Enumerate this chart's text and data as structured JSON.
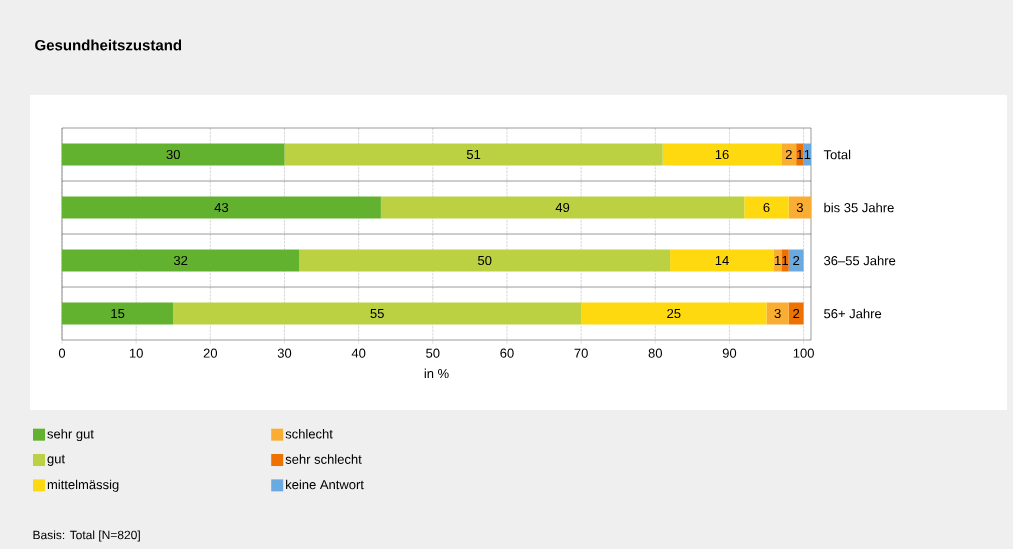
{
  "chart_data": {
    "type": "bar",
    "orientation": "horizontal",
    "stacked": true,
    "title": "Gesundheitszustand",
    "xlabel": "in %",
    "categories": [
      "Total",
      "bis 35 Jahre",
      "36–55 Jahre",
      "56+ Jahre"
    ],
    "series": [
      {
        "name": "sehr gut",
        "color": "#63b22f",
        "values": [
          30,
          43,
          32,
          15
        ],
        "value_labels": [
          "30",
          "43",
          "32",
          "15"
        ]
      },
      {
        "name": "gut",
        "color": "#bcd142",
        "values": [
          51,
          49,
          50,
          55
        ],
        "value_labels": [
          "51",
          "49",
          "50",
          "55"
        ]
      },
      {
        "name": "mittelmässig",
        "color": "#ffd90f",
        "values": [
          16,
          6,
          14,
          25
        ],
        "value_labels": [
          "16",
          "6",
          "14",
          "25"
        ]
      },
      {
        "name": "schlecht",
        "color": "#f9ae33",
        "values": [
          2,
          3,
          1,
          3
        ],
        "value_labels": [
          "2",
          "3",
          "1",
          "3"
        ]
      },
      {
        "name": "sehr schlecht",
        "color": "#ee7203",
        "values": [
          1,
          null,
          1,
          2
        ],
        "value_labels": [
          "1",
          null,
          "1",
          "2"
        ]
      },
      {
        "name": "keine Antwort",
        "color": "#6aaae0",
        "values": [
          1,
          null,
          2,
          null
        ],
        "value_labels": [
          "1",
          null,
          "2",
          null
        ]
      }
    ],
    "xlim": [
      0,
      101
    ],
    "xticks": [
      0,
      10,
      20,
      30,
      40,
      50,
      60,
      70,
      80,
      90,
      100
    ],
    "grid": "x",
    "legend": "bottom",
    "annotations": [
      "Basis: Total [N=820]"
    ]
  }
}
